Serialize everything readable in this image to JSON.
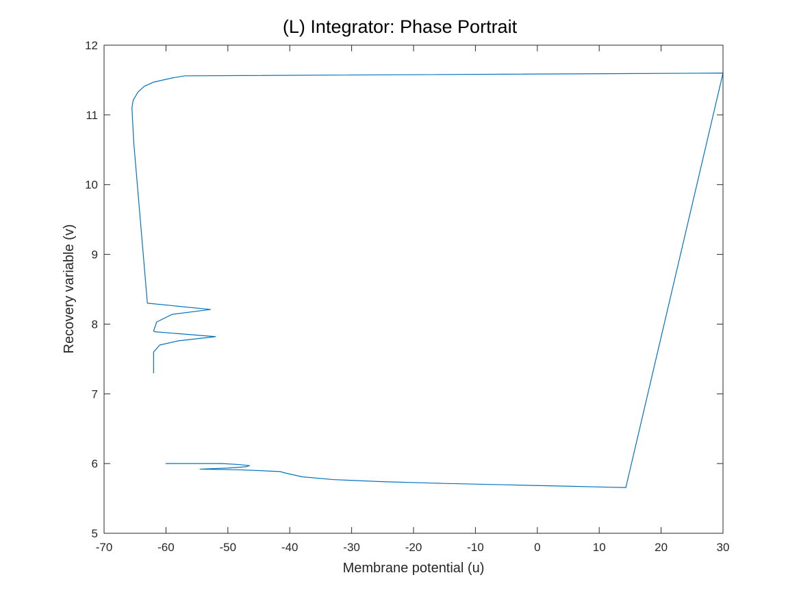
{
  "chart_data": {
    "type": "line",
    "title": "(L) Integrator: Phase Portrait",
    "xlabel": "Membrane potential (u)",
    "ylabel": "Recovery variable (v)",
    "xlim": [
      -70,
      30
    ],
    "ylim": [
      5,
      12
    ],
    "xticks": [
      "-70",
      "-60",
      "-50",
      "-40",
      "-30",
      "-20",
      "-10",
      "0",
      "10",
      "20",
      "30"
    ],
    "yticks": [
      "5",
      "6",
      "7",
      "8",
      "9",
      "10",
      "11",
      "12"
    ],
    "grid": false,
    "line_color": "#0072BD",
    "series": [
      {
        "x": [
          -60,
          -51,
          -48,
          -46.5,
          -47,
          -50,
          -54.5,
          -48,
          -44,
          -41.5,
          -41,
          -38,
          -33,
          -25,
          -15,
          -5,
          5,
          14.3,
          30,
          -57,
          -59,
          -62,
          -63.5,
          -64.5,
          -65.3,
          -65.5,
          -65.2,
          -63,
          -52.8,
          -59,
          -61.5,
          -62,
          -61.8,
          -52,
          -58,
          -61,
          -62,
          -62
        ],
        "y": [
          6.0,
          6.0,
          5.985,
          5.97,
          5.955,
          5.935,
          5.92,
          5.91,
          5.895,
          5.885,
          5.87,
          5.81,
          5.77,
          5.74,
          5.715,
          5.695,
          5.675,
          5.655,
          11.6,
          11.56,
          11.53,
          11.47,
          11.41,
          11.33,
          11.21,
          11.1,
          10.6,
          8.3,
          8.21,
          8.14,
          8.03,
          7.9,
          7.89,
          7.82,
          7.76,
          7.7,
          7.6,
          7.3
        ]
      }
    ]
  }
}
